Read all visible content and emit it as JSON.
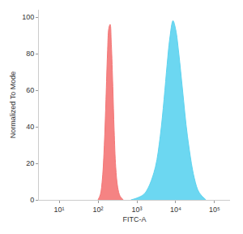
{
  "chart_data": {
    "type": "area",
    "x_label": "FITC-A",
    "y_label": "Normalized To Mode",
    "log": "x",
    "grid": false,
    "xlim": [
      3,
      250000
    ],
    "ylim": [
      0,
      104
    ],
    "xticks": [
      {
        "value": 10,
        "label": "10¹"
      },
      {
        "value": 100,
        "label": "10²"
      },
      {
        "value": 1000,
        "label": "10³"
      },
      {
        "value": 10000,
        "label": "10⁴"
      },
      {
        "value": 100000,
        "label": "10⁵"
      }
    ],
    "yticks": [
      0,
      20,
      40,
      60,
      80,
      100
    ],
    "series": [
      {
        "color": "#f47676",
        "x": [
          100,
          115,
          130,
          145,
          160,
          175,
          190,
          205,
          220,
          240,
          260,
          285,
          320,
          370,
          450
        ],
        "values": [
          0,
          3,
          12,
          30,
          55,
          80,
          94,
          96,
          85,
          62,
          38,
          18,
          7,
          2,
          0
        ]
      },
      {
        "color": "#5cd3ef",
        "x": [
          700,
          1000,
          1500,
          2000,
          3000,
          4000,
          5000,
          6000,
          7000,
          8500,
          10000,
          12000,
          15000,
          20000,
          30000,
          40000,
          60000
        ],
        "values": [
          0,
          1,
          3,
          7,
          18,
          35,
          55,
          74,
          88,
          98,
          93,
          80,
          60,
          35,
          12,
          4,
          0
        ]
      }
    ]
  }
}
